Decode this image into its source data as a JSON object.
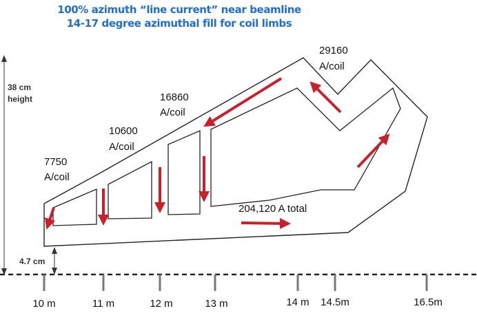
{
  "title": {
    "line1": "100% azimuth “line current” near beamline",
    "line2": "14-17 degree azimuthal fill for coil limbs"
  },
  "height_label": {
    "line1": "38 cm",
    "line2": "height"
  },
  "offset_label": "4.7 cm",
  "coil_labels": [
    {
      "value": "7750",
      "unit": "A/coil"
    },
    {
      "value": "10600",
      "unit": "A/coil"
    },
    {
      "value": "16860",
      "unit": "A/coil"
    },
    {
      "value": "29160",
      "unit": "A/coil"
    }
  ],
  "total_label": "204,120 A total",
  "axis_ticks": [
    "10 m",
    "11 m",
    "12 m",
    "13 m",
    "14 m",
    "14.5m",
    "16.5m"
  ],
  "colors": {
    "title": "#1f6fd0",
    "arrow": "#c8202c",
    "outline": "#222222"
  }
}
